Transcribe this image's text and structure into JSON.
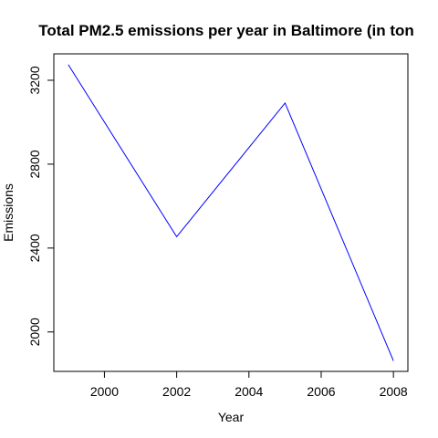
{
  "chart_data": {
    "type": "line",
    "title": "Total PM2.5 emissions per year in Baltimore (in ton",
    "xlabel": "Year",
    "ylabel": "Emissions",
    "x": [
      1999,
      2002,
      2005,
      2008
    ],
    "series": [
      {
        "values": [
          3274.18,
          2453.916,
          3091.354,
          1862.282
        ],
        "color": "#0000ff"
      }
    ],
    "x_ticks": [
      "2000",
      "2002",
      "2004",
      "2006",
      "2008"
    ],
    "y_ticks": [
      "2000",
      "2400",
      "2800",
      "3200"
    ],
    "xlim": [
      1998.6,
      2008.4
    ],
    "ylim": [
      1812,
      3326
    ],
    "grid": false,
    "legend": "none"
  }
}
